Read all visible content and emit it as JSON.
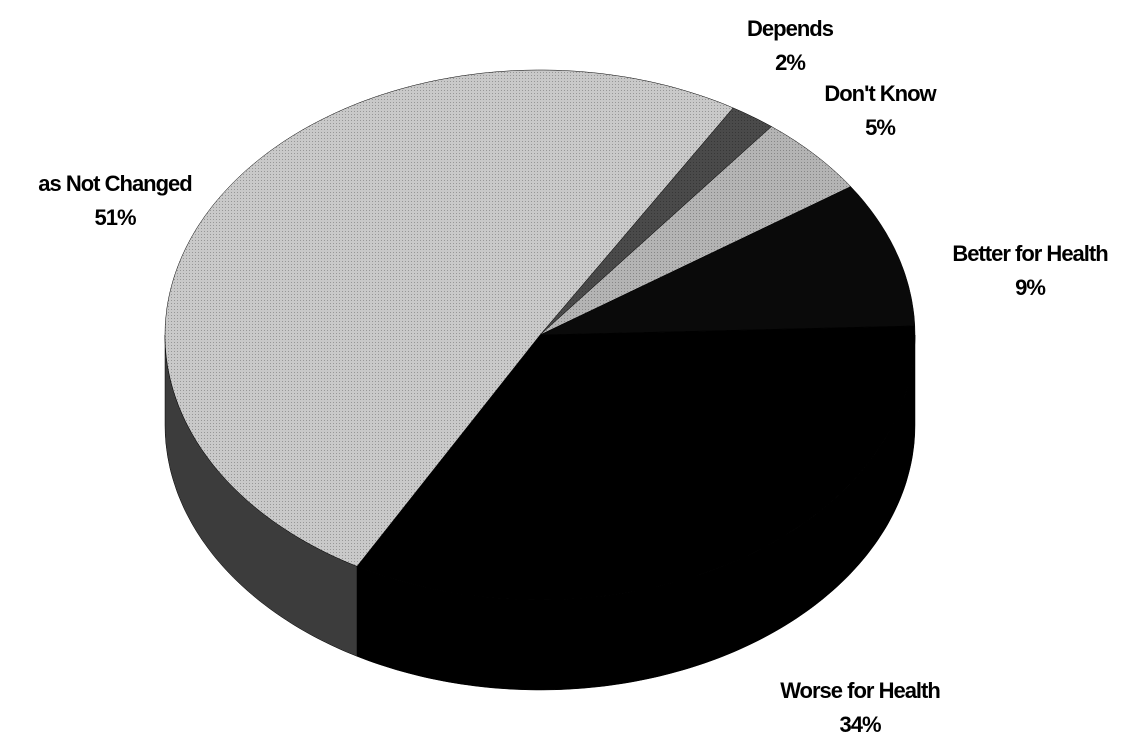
{
  "chart_data": {
    "type": "pie",
    "categories": [
      "Depends",
      "Don't Know",
      "Better for Health",
      "Worse for Health",
      "as Not Changed"
    ],
    "values": [
      2,
      5,
      9,
      34,
      51
    ],
    "value_labels": [
      "2%",
      "5%",
      "9%",
      "34%",
      "51%"
    ],
    "colors": [
      "#4a4a4a",
      "#b4b4b4",
      "#0a0a0a",
      "#000000",
      "#c9c9c9"
    ]
  }
}
